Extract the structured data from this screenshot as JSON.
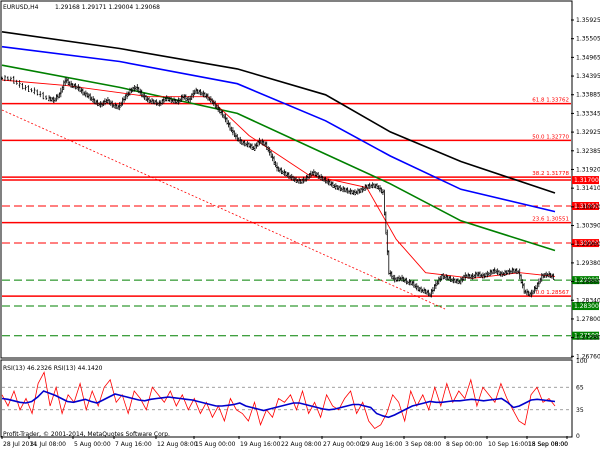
{
  "window": {
    "symbol": "EURUSD,H4",
    "ohlc": "1.29168 1.29171 1.29004 1.29068"
  },
  "watermark": "Profit-Trader, © 2001-2014, MetaQuotes Software Corp.",
  "rsi_panel": {
    "label": "RSI(13) 46.2326 RSI(13) 44.1420",
    "levels": [
      "100",
      "65",
      "35",
      "0"
    ]
  },
  "chart_data": {
    "type": "candlestick",
    "symbol": "EURUSD",
    "timeframe": "H4",
    "price_ylim": [
      1.26925,
      1.36505
    ],
    "price_ticks": [
      "1.35925",
      "1.35505",
      "1.34965",
      "1.34395",
      "1.33885",
      "1.33345",
      "1.32925",
      "1.32385",
      "1.31920",
      "1.31410",
      "1.30870",
      "1.30390",
      "1.29960",
      "1.29380",
      "1.28860",
      "1.28340",
      "1.27800",
      "1.27280",
      "1.26760"
    ],
    "x_ticks": [
      "28 Jul 2014",
      "31 Jul 08:00",
      "5 Aug 00:00",
      "7 Aug 16:00",
      "12 Aug 08:00",
      "15 Aug 00:00",
      "19 Aug 16:00",
      "22 Aug 08:00",
      "27 Aug 00:00",
      "29 Aug 16:00",
      "3 Sep 08:00",
      "8 Sep 00:00",
      "10 Sep 16:00",
      "15 Sep 08:00",
      "18 Sep 00:00"
    ],
    "horizontal_levels": [
      {
        "price": 1.317,
        "label": "1.31700",
        "style": "solid",
        "color": "#ff0000"
      },
      {
        "price": 1.31,
        "label": "1.31000",
        "style": "dashed",
        "color": "#ff0000"
      },
      {
        "price": 1.3,
        "label": "1.30000",
        "style": "dashed",
        "color": "#ff0000"
      },
      {
        "price": 1.29,
        "label": "1.29000",
        "style": "dashed",
        "color": "#008000"
      },
      {
        "price": 1.283,
        "label": "1.28300",
        "style": "dashed",
        "color": "#008000"
      },
      {
        "price": 1.275,
        "label": "1.27500",
        "style": "dashed",
        "color": "#008000"
      }
    ],
    "fibonacci_levels": [
      {
        "price": 1.33762,
        "label": "61.8 1.33762"
      },
      {
        "price": 1.3277,
        "label": "50.0 1.32770"
      },
      {
        "price": 1.31778,
        "label": "38.2 1.31778"
      },
      {
        "price": 1.30551,
        "label": "23.6 1.30551"
      },
      {
        "price": 1.28567,
        "label": "0.0 1.28567"
      }
    ],
    "close_path": [
      [
        0,
        1.3445
      ],
      [
        2,
        1.3442
      ],
      [
        4,
        1.342
      ],
      [
        6,
        1.3408
      ],
      [
        8,
        1.339
      ],
      [
        9,
        1.3385
      ],
      [
        10,
        1.34
      ],
      [
        11,
        1.344
      ],
      [
        12,
        1.3425
      ],
      [
        13,
        1.342
      ],
      [
        14,
        1.3405
      ],
      [
        15,
        1.3395
      ],
      [
        16,
        1.338
      ],
      [
        17,
        1.3372
      ],
      [
        18,
        1.3385
      ],
      [
        19,
        1.3372
      ],
      [
        20,
        1.3365
      ],
      [
        21,
        1.339
      ],
      [
        22,
        1.341
      ],
      [
        23,
        1.342
      ],
      [
        24,
        1.34
      ],
      [
        25,
        1.3385
      ],
      [
        26,
        1.338
      ],
      [
        27,
        1.3375
      ],
      [
        28,
        1.339
      ],
      [
        29,
        1.3385
      ],
      [
        30,
        1.338
      ],
      [
        31,
        1.3395
      ],
      [
        32,
        1.3385
      ],
      [
        33,
        1.341
      ],
      [
        34,
        1.3405
      ],
      [
        35,
        1.3395
      ],
      [
        36,
        1.338
      ],
      [
        37,
        1.336
      ],
      [
        38,
        1.334
      ],
      [
        39,
        1.331
      ],
      [
        40,
        1.3285
      ],
      [
        41,
        1.327
      ],
      [
        42,
        1.3265
      ],
      [
        43,
        1.3255
      ],
      [
        44,
        1.3275
      ],
      [
        45,
        1.3265
      ],
      [
        46,
        1.3235
      ],
      [
        47,
        1.32
      ],
      [
        48,
        1.319
      ],
      [
        49,
        1.318
      ],
      [
        50,
        1.317
      ],
      [
        51,
        1.3165
      ],
      [
        52,
        1.3175
      ],
      [
        53,
        1.319
      ],
      [
        54,
        1.318
      ],
      [
        55,
        1.317
      ],
      [
        56,
        1.316
      ],
      [
        57,
        1.315
      ],
      [
        58,
        1.3145
      ],
      [
        59,
        1.314
      ],
      [
        60,
        1.3135
      ],
      [
        61,
        1.314
      ],
      [
        62,
        1.315
      ],
      [
        63,
        1.3155
      ],
      [
        64,
        1.3152
      ],
      [
        65,
        1.3135
      ],
      [
        66,
        1.292
      ],
      [
        67,
        1.29
      ],
      [
        68,
        1.2905
      ],
      [
        69,
        1.2895
      ],
      [
        70,
        1.289
      ],
      [
        71,
        1.2875
      ],
      [
        72,
        1.287
      ],
      [
        73,
        1.286
      ],
      [
        74,
        1.289
      ],
      [
        75,
        1.291
      ],
      [
        76,
        1.2905
      ],
      [
        77,
        1.2898
      ],
      [
        78,
        1.2895
      ],
      [
        79,
        1.2912
      ],
      [
        80,
        1.2908
      ],
      [
        81,
        1.2916
      ],
      [
        82,
        1.291
      ],
      [
        83,
        1.2918
      ],
      [
        84,
        1.2925
      ],
      [
        85,
        1.2915
      ],
      [
        86,
        1.292
      ],
      [
        87,
        1.2925
      ],
      [
        88,
        1.2922
      ],
      [
        89,
        1.287
      ],
      [
        90,
        1.286
      ],
      [
        91,
        1.288
      ],
      [
        92,
        1.291
      ],
      [
        93,
        1.2915
      ],
      [
        94,
        1.2907
      ]
    ],
    "moving_averages": [
      {
        "color": "#000000",
        "points": [
          [
            0,
            1.357
          ],
          [
            20,
            1.3525
          ],
          [
            40,
            1.347
          ],
          [
            55,
            1.34
          ],
          [
            66,
            1.33
          ],
          [
            78,
            1.322
          ],
          [
            94,
            1.3135
          ]
        ]
      },
      {
        "color": "#0000ff",
        "points": [
          [
            0,
            1.353
          ],
          [
            20,
            1.349
          ],
          [
            40,
            1.343
          ],
          [
            55,
            1.333
          ],
          [
            66,
            1.3235
          ],
          [
            78,
            1.3145
          ],
          [
            94,
            1.3085
          ]
        ]
      },
      {
        "color": "#008000",
        "points": [
          [
            0,
            1.348
          ],
          [
            20,
            1.342
          ],
          [
            40,
            1.335
          ],
          [
            55,
            1.324
          ],
          [
            66,
            1.316
          ],
          [
            78,
            1.306
          ],
          [
            94,
            1.298
          ]
        ]
      },
      {
        "color": "#ff0000",
        "points": [
          [
            0,
            1.344
          ],
          [
            11,
            1.3425
          ],
          [
            25,
            1.3395
          ],
          [
            35,
            1.3395
          ],
          [
            42,
            1.329
          ],
          [
            52,
            1.3185
          ],
          [
            62,
            1.315
          ],
          [
            67,
            1.301
          ],
          [
            72,
            1.292
          ],
          [
            80,
            1.2905
          ],
          [
            88,
            1.292
          ],
          [
            94,
            1.291
          ]
        ]
      }
    ],
    "rsi_ylim": [
      0,
      100
    ],
    "rsi_series": [
      {
        "name": "RSI(13)",
        "color": "#0000cc",
        "values": [
          50,
          49,
          47,
          45,
          44,
          46,
          52,
          60,
          57,
          54,
          50,
          46,
          45,
          47,
          49,
          46,
          44,
          48,
          52,
          56,
          54,
          52,
          50,
          48,
          47,
          49,
          50,
          51,
          52,
          51,
          50,
          49,
          48,
          46,
          44,
          42,
          40,
          40,
          41,
          42,
          44,
          40,
          38,
          36,
          34,
          36,
          38,
          40,
          42,
          44,
          44,
          42,
          40,
          38,
          36,
          35,
          36,
          38,
          40,
          42,
          42,
          40,
          38,
          30,
          27,
          25,
          28,
          32,
          36,
          40,
          42,
          44,
          46,
          45,
          45,
          46,
          47,
          47,
          48,
          49,
          48,
          47,
          48,
          49,
          50,
          45,
          38,
          40,
          44,
          48,
          49,
          48,
          47,
          46
        ]
      },
      {
        "name": "RSI(13)",
        "color": "#ff0000",
        "values": [
          55,
          40,
          60,
          35,
          50,
          30,
          70,
          85,
          40,
          65,
          30,
          55,
          45,
          70,
          35,
          60,
          40,
          65,
          75,
          45,
          55,
          30,
          60,
          50,
          35,
          65,
          55,
          45,
          60,
          40,
          55,
          35,
          50,
          30,
          45,
          25,
          40,
          20,
          50,
          35,
          30,
          20,
          45,
          15,
          35,
          25,
          50,
          45,
          55,
          35,
          60,
          30,
          45,
          25,
          55,
          40,
          35,
          50,
          60,
          30,
          45,
          20,
          10,
          15,
          30,
          55,
          45,
          20,
          60,
          40,
          55,
          35,
          65,
          40,
          70,
          45,
          60,
          50,
          75,
          40,
          65,
          55,
          45,
          70,
          50,
          35,
          20,
          15,
          55,
          65,
          45,
          50,
          40
        ]
      }
    ]
  }
}
